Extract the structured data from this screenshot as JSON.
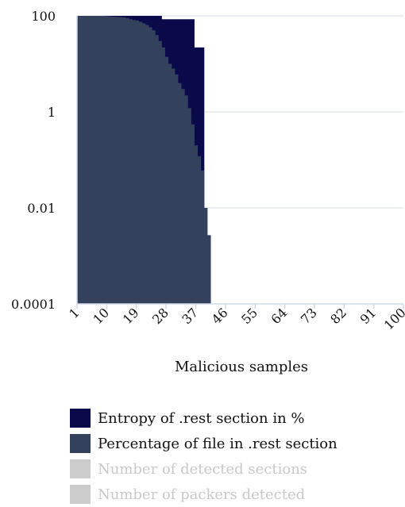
{
  "chart_data": {
    "type": "area",
    "xlabel": "Malicious samples",
    "ylabel": "",
    "y_scale": "log",
    "ylim": [
      0.0001,
      100
    ],
    "xlim": [
      1,
      100
    ],
    "yticks": [
      "100",
      "1",
      "0.01",
      "0.0001"
    ],
    "xticks": [
      "1",
      "10",
      "19",
      "28",
      "37",
      "46",
      "55",
      "64",
      "73",
      "82",
      "91",
      "100"
    ],
    "grid": "horizontal",
    "legend_position": "bottom",
    "series": [
      {
        "name": "Entropy of .rest section in %",
        "color": "#0a0a4a",
        "visible": true,
        "values": [
          100,
          100,
          100,
          100,
          100,
          100,
          100,
          100,
          100,
          100,
          100,
          100,
          100,
          100,
          100,
          100,
          100,
          100,
          100,
          100,
          100,
          100,
          100,
          100,
          100,
          100,
          85,
          85,
          85,
          85,
          85,
          85,
          85,
          85,
          85,
          85,
          22,
          22,
          22,
          0.00262,
          0.00262
        ]
      },
      {
        "name": "Percentage of file in .rest section",
        "color": "#33415c",
        "visible": true,
        "values": [
          100,
          100,
          100,
          100,
          100,
          100,
          100,
          100,
          100,
          98,
          97,
          96,
          95,
          94,
          93,
          90,
          85,
          82,
          80,
          75,
          70,
          65,
          58,
          50,
          40,
          30,
          22,
          14,
          10,
          8,
          6,
          4,
          3,
          2.2,
          1.2,
          0.55,
          0.2,
          0.12,
          0.06,
          0.01,
          0.0027
        ]
      },
      {
        "name": "Number of detected sections",
        "color": "#cccccc",
        "visible": false,
        "values": []
      },
      {
        "name": "Number of packers detected",
        "color": "#cccccc",
        "visible": false,
        "values": []
      }
    ]
  }
}
